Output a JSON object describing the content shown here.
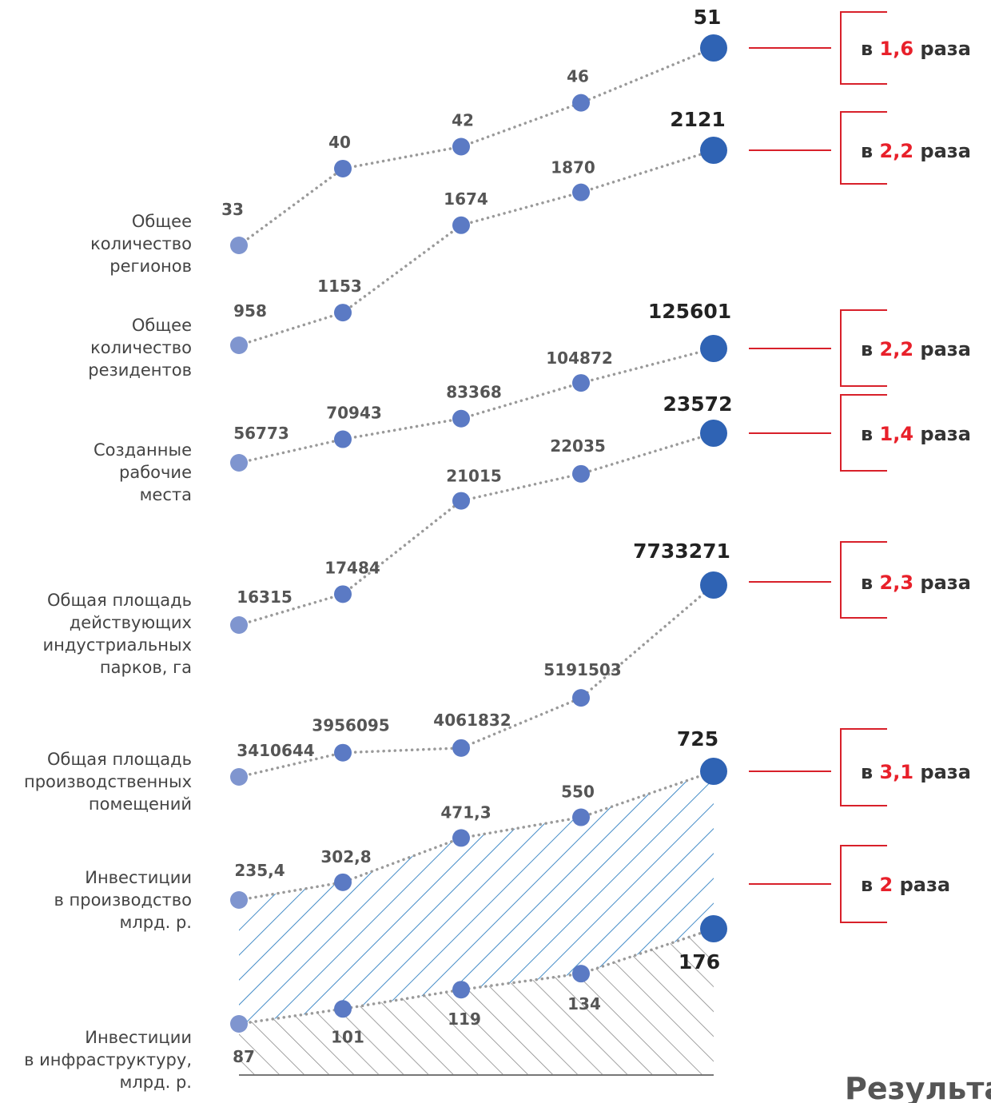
{
  "chart_data": {
    "type": "line",
    "title": "",
    "footer_text": "Результа",
    "colors": {
      "point": "#5b7ac4",
      "point_first": "#7f95cf",
      "point_last": "#2f63b4",
      "connector": "#9a9a9a",
      "bracket": "#d8202a",
      "ratio_number": "#e8202a",
      "hatch_blue": "#2f7fc1",
      "hatch_gray": "#8a8a8a"
    },
    "series": [
      {
        "name": "Общее количество регионов",
        "label_lines": [
          "Общее",
          "количество",
          "регионов"
        ],
        "values": [
          33,
          40,
          42,
          46,
          51
        ],
        "value_labels": [
          "33",
          "40",
          "42",
          "46",
          "51"
        ],
        "ratio_prefix": "в",
        "ratio_value": "1,6",
        "ratio_suffix": "раза"
      },
      {
        "name": "Общее количество резидентов",
        "label_lines": [
          "Общее",
          "количество",
          "резидентов"
        ],
        "values": [
          958,
          1153,
          1674,
          1870,
          2121
        ],
        "value_labels": [
          "958",
          "1153",
          "1674",
          "1870",
          "2121"
        ],
        "ratio_prefix": "в",
        "ratio_value": "2,2",
        "ratio_suffix": "раза"
      },
      {
        "name": "Созданные рабочие места",
        "label_lines": [
          "Созданные",
          "рабочие",
          "места"
        ],
        "values": [
          56773,
          70943,
          83368,
          104872,
          125601
        ],
        "value_labels": [
          "56773",
          "70943",
          "83368",
          "104872",
          "125601"
        ],
        "ratio_prefix": "в",
        "ratio_value": "2,2",
        "ratio_suffix": "раза"
      },
      {
        "name": "Общая площадь действующих индустриальных парков, га",
        "label_lines": [
          "Общая площадь",
          "действующих",
          "индустриальных",
          "парков, га"
        ],
        "values": [
          16315,
          17484,
          21015,
          22035,
          23572
        ],
        "value_labels": [
          "16315",
          "17484",
          "21015",
          "22035",
          "23572"
        ],
        "ratio_prefix": "в",
        "ratio_value": "1,4",
        "ratio_suffix": "раза"
      },
      {
        "name": "Общая площадь производственных помещений",
        "label_lines": [
          "Общая площадь",
          "производственных",
          "помещений"
        ],
        "values": [
          3410644,
          3956095,
          4061832,
          5191503,
          7733271
        ],
        "value_labels": [
          "3410644",
          "3956095",
          "4061832",
          "5191503",
          "7733271"
        ],
        "ratio_prefix": "в",
        "ratio_value": "2,3",
        "ratio_suffix": "раза"
      },
      {
        "name": "Инвестиции в производство млрд. р.",
        "label_lines": [
          "Инвестиции",
          "в производство",
          "млрд. р."
        ],
        "values": [
          235.4,
          302.8,
          471.3,
          550,
          725
        ],
        "value_labels": [
          "235,4",
          "302,8",
          "471,3",
          "550",
          "725"
        ],
        "ratio_prefix": "в",
        "ratio_value": "3,1",
        "ratio_suffix": "раза"
      },
      {
        "name": "Инвестиции в инфраструктуру, млрд. р.",
        "label_lines": [
          "Инвестиции",
          "в инфраструктуру,",
          "млрд. р."
        ],
        "values": [
          87,
          101,
          119,
          134,
          176
        ],
        "value_labels": [
          "87",
          "101",
          "119",
          "134",
          "176"
        ],
        "ratio_prefix": "в",
        "ratio_value": "2",
        "ratio_suffix": "раза"
      }
    ]
  }
}
